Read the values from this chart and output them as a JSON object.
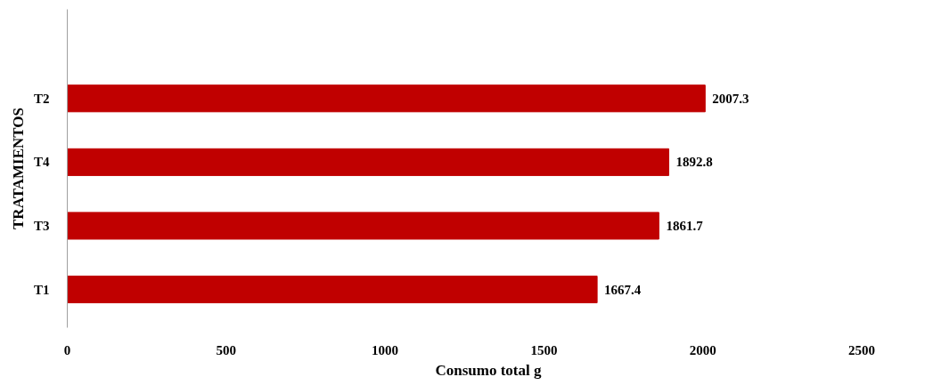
{
  "chart_data": {
    "type": "bar",
    "orientation": "horizontal",
    "categories": [
      "T2",
      "T4",
      "T3",
      "T1"
    ],
    "values": [
      2007.3,
      1892.8,
      1861.7,
      1667.4
    ],
    "color": "#c00000",
    "xlabel": "Consumo total g",
    "ylabel": "TRATAMIENTOS",
    "xlim": [
      0,
      2500
    ],
    "xticks": [
      0,
      500,
      1000,
      1500,
      2000,
      2500
    ],
    "data_labels": true,
    "grid": false
  }
}
